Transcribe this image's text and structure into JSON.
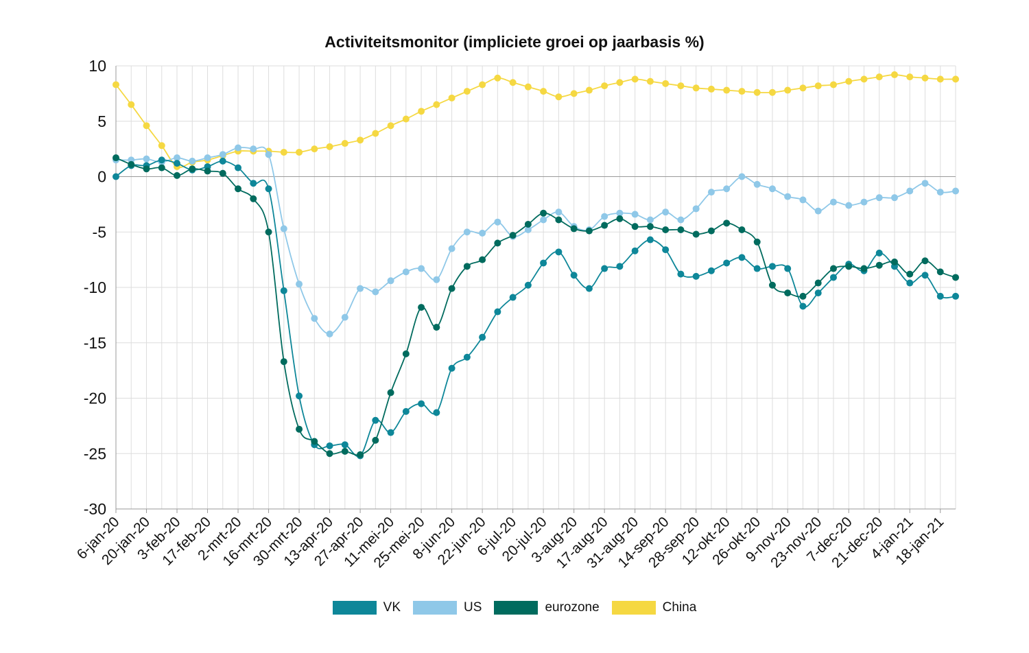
{
  "chart_data": {
    "type": "line",
    "title": "Activiteitsmonitor (impliciete groei op jaarbasis %)",
    "xlabel": "",
    "ylabel": "",
    "ylim": [
      -30,
      10
    ],
    "yticks": [
      10,
      5,
      0,
      -5,
      -10,
      -15,
      -20,
      -25,
      -30
    ],
    "grid": true,
    "legend_position": "bottom",
    "x_tick_labels": [
      "6-jan-20",
      "20-jan-20",
      "3-feb-20",
      "17-feb-20",
      "2-mrt-20",
      "16-mrt-20",
      "30-mrt-20",
      "13-apr-20",
      "27-apr-20",
      "11-mei-20",
      "25-mei-20",
      "8-jun-20",
      "22-jun-20",
      "6-jul-20",
      "20-jul-20",
      "3-aug-20",
      "17-aug-20",
      "31-aug-20",
      "14-sep-20",
      "28-sep-20",
      "12-okt-20",
      "26-okt-20",
      "9-nov-20",
      "23-nov-20",
      "7-dec-20",
      "21-dec-20",
      "4-jan-21",
      "18-jan-21"
    ],
    "x_weeks": [
      "6-jan-20",
      "13-jan-20",
      "20-jan-20",
      "27-jan-20",
      "3-feb-20",
      "10-feb-20",
      "17-feb-20",
      "24-feb-20",
      "2-mrt-20",
      "9-mrt-20",
      "16-mrt-20",
      "23-mrt-20",
      "30-mrt-20",
      "6-apr-20",
      "13-apr-20",
      "20-apr-20",
      "27-apr-20",
      "4-mei-20",
      "11-mei-20",
      "18-mei-20",
      "25-mei-20",
      "1-jun-20",
      "8-jun-20",
      "15-jun-20",
      "22-jun-20",
      "29-jun-20",
      "6-jul-20",
      "13-jul-20",
      "20-jul-20",
      "27-jul-20",
      "3-aug-20",
      "10-aug-20",
      "17-aug-20",
      "24-aug-20",
      "31-aug-20",
      "7-sep-20",
      "14-sep-20",
      "21-sep-20",
      "28-sep-20",
      "5-okt-20",
      "12-okt-20",
      "19-okt-20",
      "26-okt-20",
      "2-nov-20",
      "9-nov-20",
      "16-nov-20",
      "23-nov-20",
      "30-nov-20",
      "7-dec-20",
      "14-dec-20",
      "21-dec-20",
      "28-dec-20",
      "4-jan-21",
      "11-jan-21",
      "18-jan-21",
      "25-jan-21"
    ],
    "series": [
      {
        "name": "VK",
        "color": "#0e8799",
        "values": [
          0.0,
          1.0,
          1.0,
          1.5,
          1.2,
          0.6,
          0.9,
          1.4,
          0.8,
          -0.6,
          -1.1,
          -10.3,
          -19.8,
          -24.2,
          -24.3,
          -24.2,
          -25.2,
          -22.0,
          -23.1,
          -21.2,
          -20.5,
          -21.3,
          -17.3,
          -16.3,
          -14.5,
          -12.2,
          -10.9,
          -9.8,
          -7.8,
          -6.8,
          -8.9,
          -10.1,
          -8.3,
          -8.1,
          -6.7,
          -5.7,
          -6.6,
          -8.8,
          -9.0,
          -8.5,
          -7.8,
          -7.3,
          -8.3,
          -8.1,
          -8.3,
          -11.7,
          -10.5,
          -9.1,
          -7.9,
          -8.5,
          -6.9,
          -8.1,
          -9.6,
          -8.9,
          -10.8,
          -10.8
        ]
      },
      {
        "name": "US",
        "color": "#8fc8e8",
        "values": [
          1.5,
          1.5,
          1.6,
          1.3,
          1.7,
          1.4,
          1.7,
          2.0,
          2.6,
          2.5,
          2.0,
          -4.7,
          -9.7,
          -12.8,
          -14.2,
          -12.7,
          -10.1,
          -10.4,
          -9.4,
          -8.6,
          -8.3,
          -9.3,
          -6.5,
          -5.0,
          -5.1,
          -4.1,
          -5.4,
          -4.8,
          -3.9,
          -3.2,
          -4.5,
          -4.8,
          -3.6,
          -3.3,
          -3.4,
          -3.9,
          -3.2,
          -3.9,
          -2.9,
          -1.4,
          -1.1,
          0.0,
          -0.7,
          -1.1,
          -1.8,
          -2.1,
          -3.1,
          -2.3,
          -2.6,
          -2.3,
          -1.9,
          -1.9,
          -1.3,
          -0.6,
          -1.4,
          -1.3
        ]
      },
      {
        "name": "eurozone",
        "color": "#006b5e",
        "values": [
          1.7,
          1.1,
          0.7,
          0.8,
          0.1,
          0.7,
          0.5,
          0.3,
          -1.1,
          -2.0,
          -5.0,
          -16.7,
          -22.8,
          -23.9,
          -25.0,
          -24.8,
          -25.1,
          -23.8,
          -19.5,
          -16.0,
          -11.8,
          -13.6,
          -10.1,
          -8.1,
          -7.5,
          -6.0,
          -5.3,
          -4.3,
          -3.3,
          -3.9,
          -4.7,
          -4.9,
          -4.4,
          -3.8,
          -4.5,
          -4.5,
          -4.8,
          -4.8,
          -5.2,
          -4.9,
          -4.2,
          -4.8,
          -5.9,
          -9.8,
          -10.5,
          -10.8,
          -9.6,
          -8.3,
          -8.1,
          -8.3,
          -8.0,
          -7.7,
          -8.8,
          -7.6,
          -8.6,
          -9.1
        ]
      },
      {
        "name": "China",
        "color": "#f5d842",
        "values": [
          8.3,
          6.5,
          4.6,
          2.8,
          0.9,
          1.3,
          1.5,
          1.9,
          2.3,
          2.3,
          2.3,
          2.2,
          2.2,
          2.5,
          2.7,
          3.0,
          3.3,
          3.9,
          4.6,
          5.2,
          5.9,
          6.5,
          7.1,
          7.7,
          8.3,
          8.9,
          8.5,
          8.1,
          7.7,
          7.2,
          7.5,
          7.8,
          8.2,
          8.5,
          8.8,
          8.6,
          8.4,
          8.2,
          8.0,
          7.9,
          7.8,
          7.7,
          7.6,
          7.6,
          7.8,
          8.0,
          8.2,
          8.3,
          8.6,
          8.8,
          9.0,
          9.2,
          9.0,
          8.9,
          8.8,
          8.8
        ]
      }
    ]
  },
  "legend": {
    "items": [
      {
        "label": "VK",
        "color": "#0e8799"
      },
      {
        "label": "US",
        "color": "#8fc8e8"
      },
      {
        "label": "eurozone",
        "color": "#006b5e"
      },
      {
        "label": "China",
        "color": "#f5d842"
      }
    ]
  }
}
